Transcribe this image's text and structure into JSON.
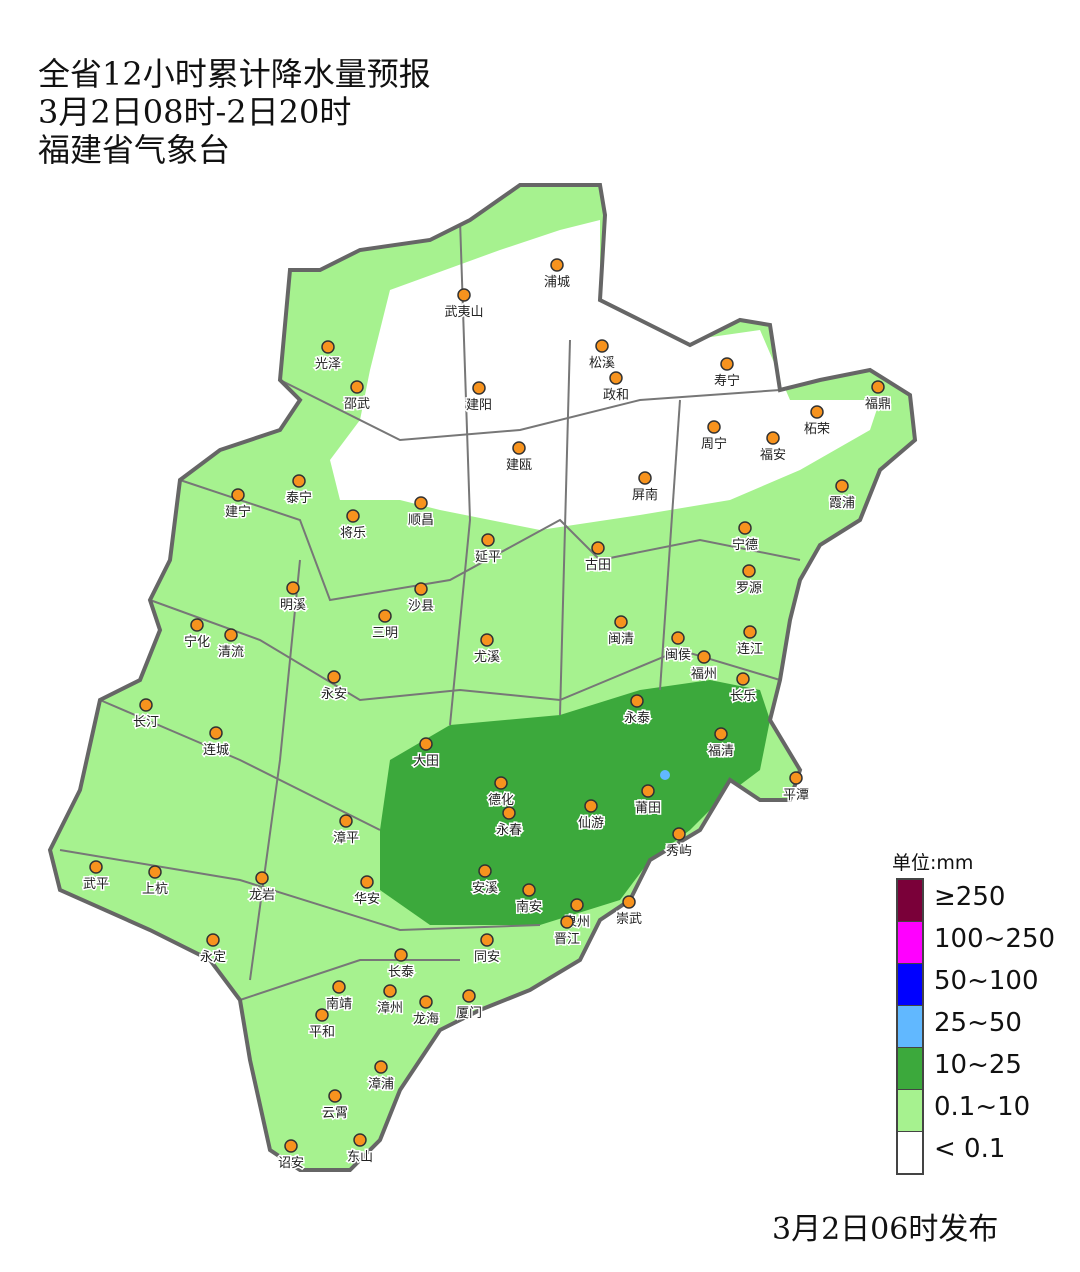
{
  "header": {
    "title": "全省12小时累计降水量预报",
    "period": "3月2日08时-2日20时",
    "issuer": "福建省气象台"
  },
  "legend": {
    "unit": "单位:mm",
    "items": [
      {
        "label": "≥250",
        "color": "#7a0039"
      },
      {
        "label": "100~250",
        "color": "#ff00ff"
      },
      {
        "label": "50~100",
        "color": "#0000ff"
      },
      {
        "label": "25~50",
        "color": "#61b8ff"
      },
      {
        "label": "10~25",
        "color": "#3ca93c"
      },
      {
        "label": "0.1~10",
        "color": "#a6f28f"
      },
      {
        "label": "< 0.1",
        "color": "#ffffff"
      }
    ]
  },
  "cities": [
    "浦城",
    "武夷山",
    "光泽",
    "邵武",
    "松溪",
    "政和",
    "寿宁",
    "建阳",
    "福鼎",
    "柘荣",
    "周宁",
    "福安",
    "建瓯",
    "泰宁",
    "建宁",
    "将乐",
    "顺昌",
    "屏南",
    "霞浦",
    "宁德",
    "延平",
    "古田",
    "罗源",
    "明溪",
    "沙县",
    "宁化",
    "清流",
    "三明",
    "尤溪",
    "闽清",
    "闽侯",
    "连江",
    "福州",
    "长乐",
    "永安",
    "永泰",
    "长汀",
    "连城",
    "大田",
    "福清",
    "平潭",
    "德化",
    "永春",
    "仙游",
    "莆田",
    "秀屿",
    "漳平",
    "武平",
    "上杭",
    "华安",
    "安溪",
    "南安",
    "泉州",
    "崇武",
    "晋江",
    "龙岩",
    "永定",
    "同安",
    "长泰",
    "南靖",
    "漳州",
    "龙海",
    "厦门",
    "平和",
    "漳浦",
    "云霄",
    "诏安",
    "东山"
  ],
  "footer": {
    "issued": "3月2日06时发布"
  }
}
